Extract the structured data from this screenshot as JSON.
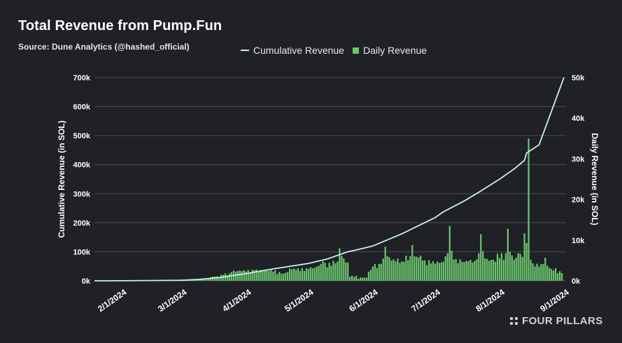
{
  "header": {
    "title": "Total Revenue from Pump.Fun",
    "subtitle": "Source: Dune Analytics (@hashed_official)"
  },
  "legend": {
    "cumulative": "Cumulative Revenue",
    "daily": "Daily Revenue"
  },
  "brand": {
    "name": "FOUR PILLARS"
  },
  "colors": {
    "background": "#1f2126",
    "line": "#c9f1e6",
    "bars": "#6cc56f",
    "grid": "#4a4d53"
  },
  "chart_data": {
    "type": "bar+line",
    "ylabel_left": "Cumulative Revenue (in SOL)",
    "ylabel_right": "Daily Revenue (in SOL)",
    "y_left_ticks": [
      "0k",
      "100k",
      "200k",
      "300k",
      "400k",
      "500k",
      "600k",
      "700k"
    ],
    "y_left_range": [
      0,
      700000
    ],
    "y_right_ticks": [
      "0k",
      "10k",
      "20k",
      "30k",
      "40k",
      "50k"
    ],
    "y_right_range": [
      0,
      50000
    ],
    "x_ticks": [
      "2/1/2024",
      "3/1/2024",
      "4/1/2024",
      "5/1/2024",
      "6/1/2024",
      "7/1/2024",
      "8/1/2024",
      "9/1/2024"
    ],
    "grid": true,
    "legend_position": "top",
    "series": [
      {
        "name": "Cumulative Revenue",
        "type": "line",
        "points": [
          [
            "2024-01-19",
            0
          ],
          [
            "2024-02-01",
            200
          ],
          [
            "2024-03-01",
            2000
          ],
          [
            "2024-03-10",
            5000
          ],
          [
            "2024-03-20",
            12000
          ],
          [
            "2024-04-01",
            25000
          ],
          [
            "2024-04-15",
            42000
          ],
          [
            "2024-05-01",
            60000
          ],
          [
            "2024-05-10",
            75000
          ],
          [
            "2024-05-20",
            100000
          ],
          [
            "2024-05-25",
            108000
          ],
          [
            "2024-06-01",
            120000
          ],
          [
            "2024-06-15",
            162000
          ],
          [
            "2024-07-01",
            218000
          ],
          [
            "2024-07-05",
            238000
          ],
          [
            "2024-07-15",
            275000
          ],
          [
            "2024-07-22",
            305000
          ],
          [
            "2024-08-01",
            350000
          ],
          [
            "2024-08-08",
            385000
          ],
          [
            "2024-08-13",
            415000
          ],
          [
            "2024-08-14",
            440000
          ],
          [
            "2024-08-20",
            468000
          ],
          [
            "2024-09-01",
            700000
          ]
        ]
      },
      {
        "name": "Daily Revenue",
        "type": "bar",
        "points": [
          [
            "2024-03-01",
            150
          ],
          [
            "2024-03-05",
            300
          ],
          [
            "2024-03-10",
            500
          ],
          [
            "2024-03-15",
            900
          ],
          [
            "2024-03-20",
            1500
          ],
          [
            "2024-03-25",
            2200
          ],
          [
            "2024-03-29",
            2500
          ],
          [
            "2024-04-01",
            2300
          ],
          [
            "2024-04-05",
            2600
          ],
          [
            "2024-04-10",
            2400
          ],
          [
            "2024-04-15",
            2600
          ],
          [
            "2024-04-19",
            1800
          ],
          [
            "2024-04-22",
            3000
          ],
          [
            "2024-04-25",
            2700
          ],
          [
            "2024-05-01",
            2900
          ],
          [
            "2024-05-05",
            3500
          ],
          [
            "2024-05-08",
            4800
          ],
          [
            "2024-05-12",
            3700
          ],
          [
            "2024-05-16",
            8000
          ],
          [
            "2024-05-18",
            5500
          ],
          [
            "2024-05-20",
            4500
          ],
          [
            "2024-05-25",
            500
          ],
          [
            "2024-05-30",
            2200
          ],
          [
            "2024-06-01",
            3500
          ],
          [
            "2024-06-05",
            4200
          ],
          [
            "2024-06-07",
            8400
          ],
          [
            "2024-06-10",
            5000
          ],
          [
            "2024-06-15",
            4800
          ],
          [
            "2024-06-20",
            8800
          ],
          [
            "2024-06-25",
            5000
          ],
          [
            "2024-06-29",
            4300
          ],
          [
            "2024-07-01",
            4200
          ],
          [
            "2024-07-05",
            4700
          ],
          [
            "2024-07-08",
            13500
          ],
          [
            "2024-07-10",
            5200
          ],
          [
            "2024-07-15",
            4600
          ],
          [
            "2024-07-20",
            4900
          ],
          [
            "2024-07-23",
            11500
          ],
          [
            "2024-07-25",
            5500
          ],
          [
            "2024-07-30",
            4700
          ],
          [
            "2024-08-05",
            12800
          ],
          [
            "2024-08-08",
            5200
          ],
          [
            "2024-08-10",
            6800
          ],
          [
            "2024-08-12",
            5900
          ],
          [
            "2024-08-15",
            35000
          ],
          [
            "2024-08-16",
            5200
          ],
          [
            "2024-08-20",
            3500
          ],
          [
            "2024-08-23",
            5700
          ],
          [
            "2024-08-26",
            2900
          ],
          [
            "2024-08-28",
            3100
          ],
          [
            "2024-08-31",
            1900
          ]
        ]
      }
    ]
  }
}
